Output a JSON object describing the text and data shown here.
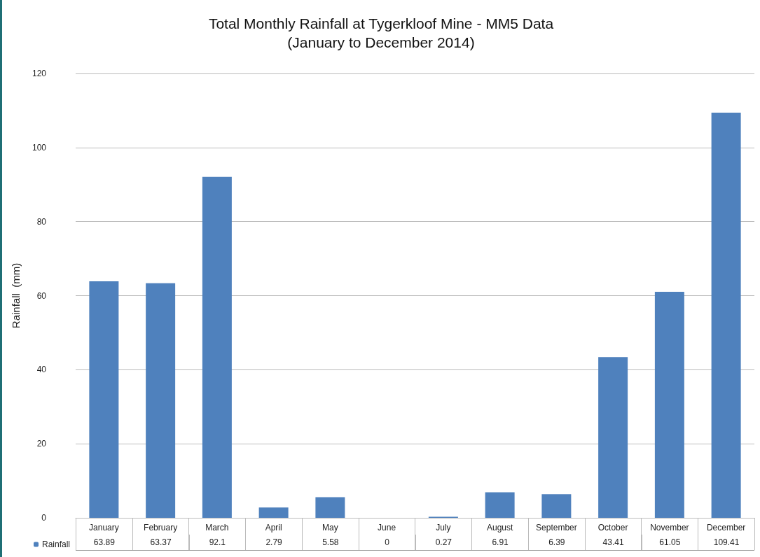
{
  "chart_data": {
    "type": "bar",
    "title": "Total Monthly Rainfall at Tygerkloof Mine - MM5 Data",
    "subtitle": "(January to December 2014)",
    "ylabel": "Rainfall  (mm)",
    "categories": [
      "January",
      "February",
      "March",
      "April",
      "May",
      "June",
      "July",
      "August",
      "September",
      "October",
      "November",
      "December"
    ],
    "series": [
      {
        "name": "Rainfall",
        "color": "#4f81bd",
        "values": [
          63.89,
          63.37,
          92.1,
          2.79,
          5.58,
          0,
          0.27,
          6.91,
          6.39,
          43.41,
          61.05,
          109.41
        ]
      }
    ],
    "ylim": [
      0,
      120
    ],
    "yticks": [
      0,
      20,
      40,
      60,
      80,
      100,
      120
    ],
    "grid": "y",
    "legend": "bottom left",
    "data_labels": true
  }
}
